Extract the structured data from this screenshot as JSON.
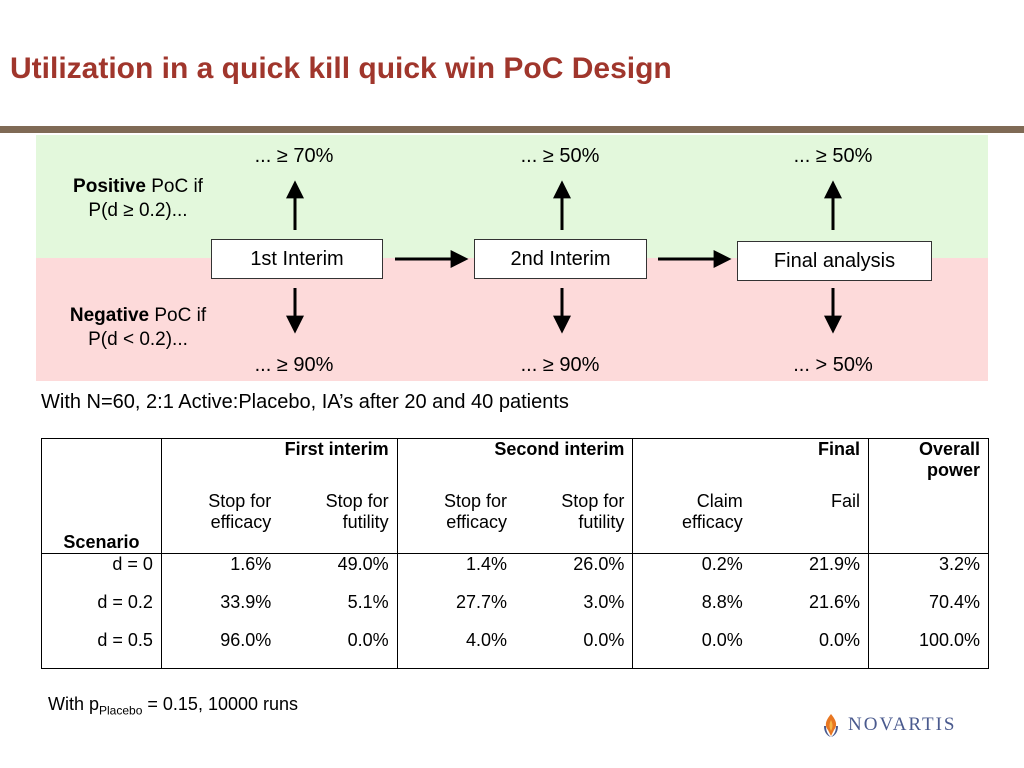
{
  "title": "Utilization in a quick kill quick win PoC Design",
  "diagram": {
    "positive_bold": "Positive",
    "positive_rest": " PoC if",
    "positive_line2": "P(d ≥ 0.2)...",
    "negative_bold": "Negative",
    "negative_rest": " PoC if",
    "negative_line2": "P(d < 0.2)...",
    "stages": [
      {
        "label": "1st Interim",
        "positive": "... ≥ 70%",
        "negative": "... ≥ 90%"
      },
      {
        "label": "2nd Interim",
        "positive": "... ≥ 50%",
        "negative": "... ≥ 90%"
      },
      {
        "label": "Final analysis",
        "positive": "... ≥ 50%",
        "negative": "... > 50%"
      }
    ],
    "colors": {
      "positive_band": "#E3F8DC",
      "negative_band": "#FDDADA",
      "title": "#A0362C"
    }
  },
  "caption": "With N=60, 2:1 Active:Placebo, IA’s after 20 and 40 patients",
  "table": {
    "groups": [
      "First interim",
      "Second interim",
      "Final",
      "Overall power"
    ],
    "scenario_header": "Scenario",
    "subheaders": [
      "Stop for efficacy",
      "Stop for futility",
      "Stop for efficacy",
      "Stop for futility",
      "Claim efficacy",
      "Fail"
    ],
    "rows": [
      {
        "scenario": "d =    0",
        "values": [
          "1.6%",
          "49.0%",
          "1.4%",
          "26.0%",
          "0.2%",
          "21.9%",
          "3.2%"
        ]
      },
      {
        "scenario": "d = 0.2",
        "values": [
          "33.9%",
          "5.1%",
          "27.7%",
          "3.0%",
          "8.8%",
          "21.6%",
          "70.4%"
        ]
      },
      {
        "scenario": "d = 0.5",
        "values": [
          "96.0%",
          "0.0%",
          "4.0%",
          "0.0%",
          "0.0%",
          "0.0%",
          "100.0%"
        ]
      }
    ]
  },
  "note": {
    "prefix": "With p",
    "subscript": "Placebo",
    "suffix": " = 0.15, 10000 runs"
  },
  "logo": {
    "brand": "NOVARTIS"
  }
}
